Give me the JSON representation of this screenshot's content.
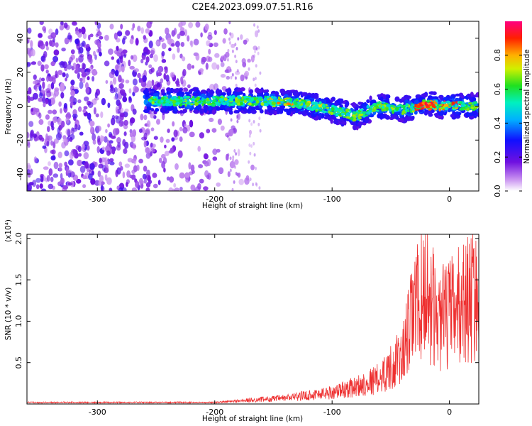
{
  "title": "C2E4.2023.099.07.51.R16",
  "chart_data": [
    {
      "type": "heatmap",
      "xlabel": "Height of straight line (km)",
      "ylabel": "Frequency (Hz)",
      "xlim": [
        -360,
        25
      ],
      "ylim": [
        -50,
        50
      ],
      "x_ticks": [
        -300,
        -200,
        -100,
        0
      ],
      "y_ticks": [
        -40,
        -20,
        0,
        20,
        40
      ],
      "colorbar": {
        "label": "Normalized spectral amplitude",
        "range": [
          0,
          1
        ],
        "ticks": [
          "0.0",
          "0.2",
          "0.4",
          "0.6",
          "0.8"
        ],
        "colormap": "rainbow (white-violet-blue-cyan-green-yellow-orange-red-magenta)"
      },
      "band_center_hz": [
        {
          "x": -250,
          "y": 3
        },
        {
          "x": -200,
          "y": 3
        },
        {
          "x": -150,
          "y": 3
        },
        {
          "x": -120,
          "y": 1
        },
        {
          "x": -100,
          "y": -2
        },
        {
          "x": -80,
          "y": -6
        },
        {
          "x": -60,
          "y": 0
        },
        {
          "x": -40,
          "y": -2
        },
        {
          "x": -20,
          "y": 1
        },
        {
          "x": 0,
          "y": 0
        },
        {
          "x": 20,
          "y": 0
        }
      ],
      "noise_region_x": [
        -360,
        -160
      ]
    },
    {
      "type": "line",
      "xlabel": "Height of straight line (km)",
      "ylabel": "SNR (10 * v/v)",
      "y_scale_note": "(x10⁴)",
      "xlim": [
        -360,
        25
      ],
      "ylim": [
        0,
        2.05
      ],
      "x_ticks": [
        -300,
        -200,
        -100,
        0
      ],
      "y_ticks": [
        "0.5",
        "1.0",
        "1.5",
        "2.0"
      ],
      "color": "#ee3030",
      "envelope": [
        {
          "x": -360,
          "y": 0.02
        },
        {
          "x": -200,
          "y": 0.02
        },
        {
          "x": -170,
          "y": 0.06
        },
        {
          "x": -140,
          "y": 0.1
        },
        {
          "x": -100,
          "y": 0.2
        },
        {
          "x": -80,
          "y": 0.3
        },
        {
          "x": -60,
          "y": 0.45
        },
        {
          "x": -40,
          "y": 0.85
        },
        {
          "x": -30,
          "y": 1.7
        },
        {
          "x": -20,
          "y": 2.05
        },
        {
          "x": -10,
          "y": 1.5
        },
        {
          "x": 0,
          "y": 1.6
        },
        {
          "x": 10,
          "y": 1.8
        },
        {
          "x": 20,
          "y": 1.95
        }
      ]
    }
  ],
  "colors": {
    "line": "#ee3030",
    "frame": "#000000"
  }
}
